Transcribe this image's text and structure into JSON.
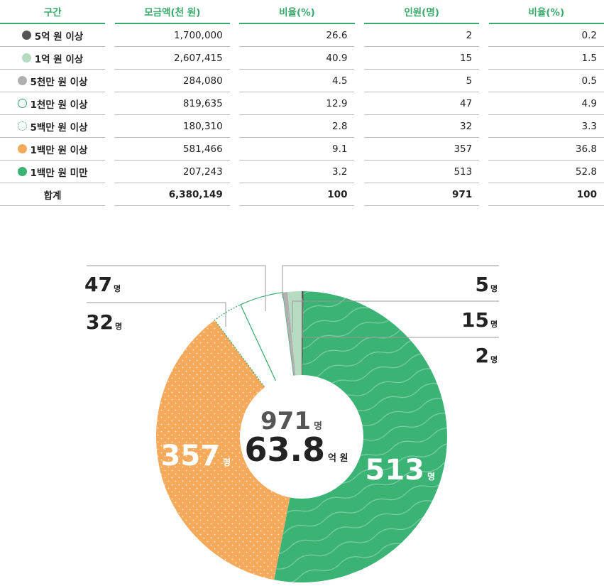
{
  "table": {
    "headers": [
      "구간",
      "모금액(천 원)",
      "비율(%)",
      "인원(명)",
      "비율(%)"
    ],
    "rows": [
      {
        "label": "5억 원 이상",
        "marker": "dark",
        "amount": "1,700,000",
        "amount_pct": "26.6",
        "people": "2",
        "people_pct": "0.2"
      },
      {
        "label": "1억 원 이상",
        "marker": "light-green",
        "amount": "2,607,415",
        "amount_pct": "40.9",
        "people": "15",
        "people_pct": "1.5"
      },
      {
        "label": "5천만 원 이상",
        "marker": "gray",
        "amount": "284,080",
        "amount_pct": "4.5",
        "people": "5",
        "people_pct": "0.5"
      },
      {
        "label": "1천만 원 이상",
        "marker": "green-outline",
        "amount": "819,635",
        "amount_pct": "12.9",
        "people": "47",
        "people_pct": "4.9"
      },
      {
        "label": "5백만 원 이상",
        "marker": "dotted-outline",
        "amount": "180,310",
        "amount_pct": "2.8",
        "people": "32",
        "people_pct": "3.3"
      },
      {
        "label": "1백만 원 이상",
        "marker": "orange",
        "amount": "581,466",
        "amount_pct": "9.1",
        "people": "357",
        "people_pct": "36.8"
      },
      {
        "label": "1백만 원 미만",
        "marker": "green",
        "amount": "207,243",
        "amount_pct": "3.2",
        "people": "513",
        "people_pct": "52.8"
      }
    ],
    "total": {
      "label": "합계",
      "amount": "6,380,149",
      "amount_pct": "100",
      "people": "971",
      "people_pct": "100"
    }
  },
  "colors": {
    "accent": "#3aa86a",
    "dark": "#555555",
    "light-green": "#b5dcc1",
    "gray": "#b0b0b0",
    "green-outline": "#3aa86a",
    "dotted-outline": "#3aa86a",
    "orange": "#f5a95a",
    "green": "#3bb374"
  },
  "chart_data": {
    "type": "pie",
    "variant": "donut",
    "title": "",
    "categories": [
      "5억 원 이상",
      "1억 원 이상",
      "5천만 원 이상",
      "1천만 원 이상",
      "5백만 원 이상",
      "1백만 원 이상",
      "1백만 원 미만"
    ],
    "values": [
      2,
      15,
      5,
      47,
      32,
      357,
      513
    ],
    "value_unit": "명",
    "slice_labels": [
      "2",
      "15",
      "5",
      "47",
      "32",
      "357",
      "513"
    ],
    "center_total": "971",
    "center_total_unit": "명",
    "center_amount": "63.8",
    "center_amount_unit": "억 원"
  }
}
